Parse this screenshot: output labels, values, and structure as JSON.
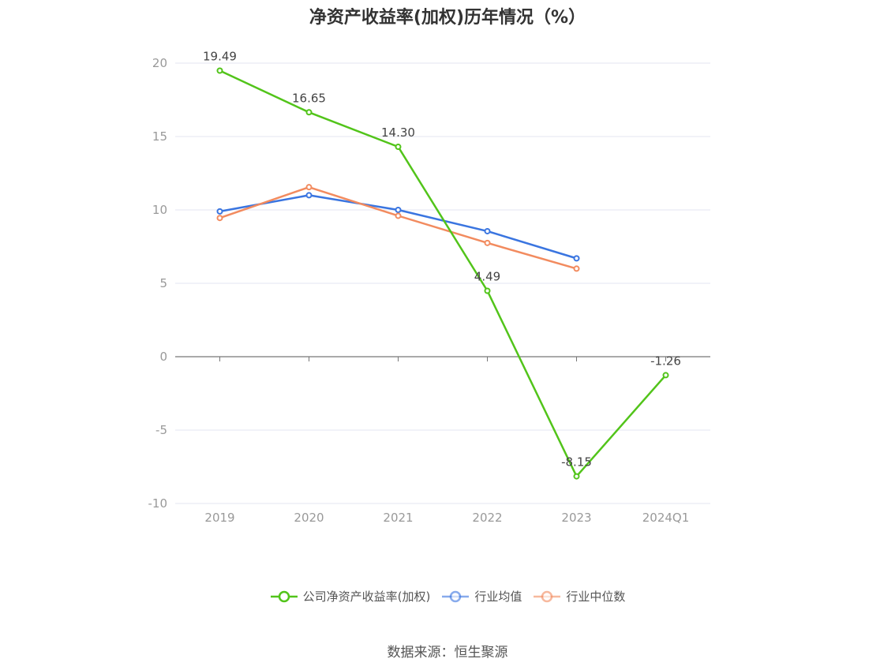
{
  "chart_data": {
    "type": "line",
    "title": "净资产收益率(加权)历年情况（%）",
    "categories": [
      "2019",
      "2020",
      "2021",
      "2022",
      "2023",
      "2024Q1"
    ],
    "ylim": [
      -10,
      20
    ],
    "yticks": [
      "-10",
      "-5",
      "0",
      "5",
      "10",
      "15",
      "20"
    ],
    "grid": true,
    "legend_position": "bottom",
    "series": [
      {
        "name": "公司净资产收益率(加权)",
        "color": "#52c41a",
        "values": [
          19.49,
          16.65,
          14.3,
          4.49,
          -8.15,
          -1.26
        ],
        "labels": [
          "19.49",
          "16.65",
          "14.30",
          "4.49",
          "-8.15",
          "-1.26"
        ]
      },
      {
        "name": "行业均值",
        "color": "#3a75e0",
        "values": [
          9.9,
          11.0,
          10.0,
          8.55,
          6.7,
          null
        ]
      },
      {
        "name": "行业中位数",
        "color": "#f28b5f",
        "values": [
          9.45,
          11.55,
          9.6,
          7.75,
          6.0,
          null
        ]
      }
    ]
  },
  "source": "数据来源：恒生聚源"
}
